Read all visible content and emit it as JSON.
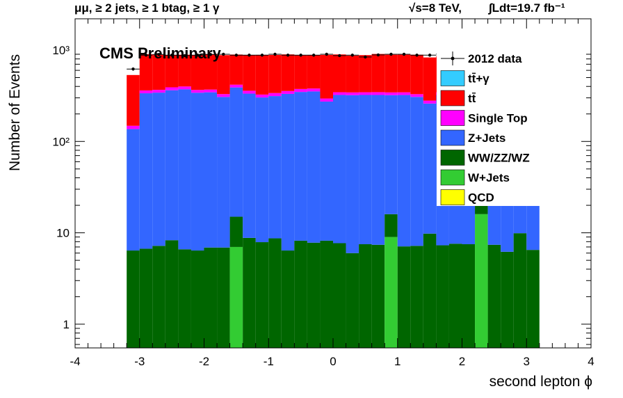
{
  "header": {
    "channel": "μμ, ≥ 2 jets, ≥ 1 btag, ≥ 1 γ",
    "energy": "√s=8 TeV,",
    "lumi": "∫Ldt=19.7 fb⁻¹"
  },
  "annotation": "CMS Preliminary",
  "colors": {
    "ttgamma": "#33ccff",
    "ttbar": "#ff0000",
    "singletop": "#ff00ff",
    "zjets": "#3366ff",
    "diboson": "#006600",
    "wjets": "#33cc33",
    "qcd": "#ffff00",
    "data": "#000000"
  },
  "chart_data": {
    "type": "bar",
    "stacked": true,
    "log_y": true,
    "xlabel": "second lepton  ϕ",
    "ylabel": "Number of Events",
    "xlim": [
      -4,
      4
    ],
    "ylim": [
      0.55,
      2200
    ],
    "x_ticks": [
      "-4",
      "-3",
      "-2",
      "-1",
      "0",
      "1",
      "2",
      "3",
      "4"
    ],
    "y_ticks": [
      "1",
      "10",
      "10²",
      "10³"
    ],
    "legend_position": "top-right",
    "legend": [
      "2012 data",
      "tt̄+γ",
      "tt̄",
      "Single Top",
      "Z+Jets",
      "WW/ZZ/WZ",
      "W+Jets",
      "QCD"
    ],
    "bin_edges": [
      -3.2,
      -3.0,
      -2.8,
      -2.6,
      -2.4,
      -2.2,
      -2.0,
      -1.8,
      -1.6,
      -1.4,
      -1.2,
      -1.0,
      -0.8,
      -0.6,
      -0.4,
      -0.2,
      0.0,
      0.2,
      0.4,
      0.6,
      0.8,
      1.0,
      1.2,
      1.4,
      1.6,
      1.8,
      2.0,
      2.2,
      2.4,
      2.6,
      2.8,
      3.0,
      3.2
    ],
    "series": [
      {
        "name": "W+Jets",
        "color_key": "wjets",
        "values": [
          0,
          0,
          0,
          0,
          0,
          0,
          0,
          0,
          7,
          0,
          0,
          0,
          0,
          0,
          0,
          0,
          0,
          0,
          0,
          0,
          9,
          0,
          0,
          0,
          0,
          0,
          0,
          16,
          0,
          0,
          0,
          0
        ]
      },
      {
        "name": "WW/ZZ/WZ",
        "color_key": "diboson",
        "values": [
          6.4,
          6.7,
          7.2,
          8.3,
          6.6,
          6.4,
          6.9,
          6.9,
          8,
          8.8,
          7.9,
          8.7,
          6.4,
          8.2,
          7.8,
          8.2,
          7.7,
          6,
          7.5,
          7.4,
          7,
          7.1,
          7.2,
          9.8,
          7.3,
          7.6,
          7.5,
          6,
          7.4,
          6.2,
          9.9,
          6.5
        ]
      },
      {
        "name": "Z+Jets",
        "color_key": "zjets",
        "values": [
          130,
          330,
          335,
          355,
          365,
          335,
          338,
          300,
          375,
          325,
          295,
          305,
          325,
          340,
          345,
          265,
          315,
          315,
          315,
          315,
          305,
          315,
          300,
          250,
          315,
          280,
          270,
          270,
          280,
          280,
          270,
          280
        ]
      },
      {
        "name": "Single Top",
        "color_key": "singletop",
        "values": [
          12,
          25,
          25,
          28,
          28,
          25,
          25,
          23,
          28,
          25,
          23,
          25,
          25,
          27,
          27,
          22,
          23,
          23,
          23,
          24,
          23,
          23,
          22,
          20,
          23,
          22,
          20,
          20,
          22,
          22,
          20,
          22
        ]
      },
      {
        "name": "tt̄",
        "color_key": "ttbar",
        "values": [
          385,
          540,
          520,
          490,
          490,
          510,
          535,
          550,
          475,
          520,
          560,
          545,
          540,
          500,
          500,
          590,
          550,
          525,
          535,
          560,
          545,
          545,
          560,
          550,
          515,
          560,
          590,
          590,
          550,
          550,
          560,
          540
        ]
      },
      {
        "name": "tt̄+γ",
        "color_key": "ttgamma",
        "values": [
          0,
          0,
          0,
          0,
          0,
          0,
          0,
          0,
          0,
          0,
          0,
          0,
          0,
          0,
          0,
          0,
          0,
          0,
          0,
          0,
          0,
          0,
          0,
          0,
          0,
          0,
          0,
          0,
          0,
          0,
          0,
          0
        ]
      },
      {
        "name": "QCD",
        "color_key": "qcd",
        "values": [
          0,
          0,
          0,
          0,
          0,
          0,
          0,
          0,
          0,
          0,
          0,
          0,
          0,
          0,
          0,
          0,
          0,
          0,
          0,
          0,
          0,
          0,
          0,
          0,
          0,
          0,
          0,
          0,
          0,
          0,
          0,
          0
        ]
      }
    ],
    "data_points": {
      "name": "2012 data",
      "values": [
        620,
        880,
        895,
        880,
        870,
        880,
        895,
        900,
        880,
        880,
        880,
        900,
        880,
        880,
        880,
        900,
        870,
        880,
        840,
        885,
        900,
        900,
        880,
        880,
        905,
        880,
        880,
        880,
        880,
        880,
        900,
        880
      ]
    }
  }
}
